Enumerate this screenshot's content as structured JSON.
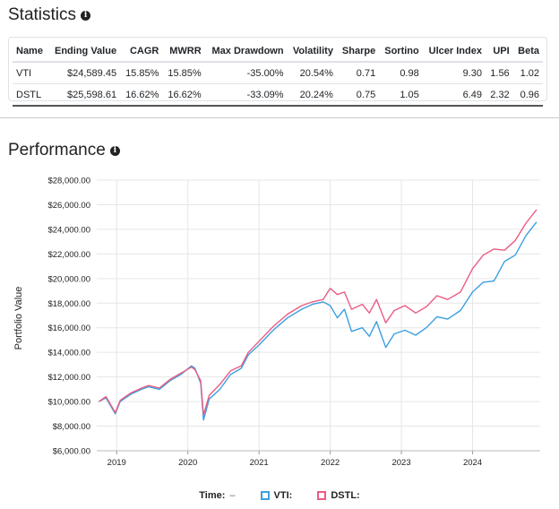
{
  "statistics": {
    "title": "Statistics",
    "columns": [
      "Name",
      "Ending Value",
      "CAGR",
      "MWRR",
      "Max Drawdown",
      "Volatility",
      "Sharpe",
      "Sortino",
      "Ulcer Index",
      "UPI",
      "Beta"
    ],
    "rows": [
      [
        "VTI",
        "$24,589.45",
        "15.85%",
        "15.85%",
        "-35.00%",
        "20.54%",
        "0.71",
        "0.98",
        "9.30",
        "1.56",
        "1.02"
      ],
      [
        "DSTL",
        "$25,598.61",
        "16.62%",
        "16.62%",
        "-33.09%",
        "20.24%",
        "0.75",
        "1.05",
        "6.49",
        "2.32",
        "0.96"
      ]
    ]
  },
  "performance": {
    "title": "Performance"
  },
  "colors": {
    "vti": "#3b9fe0",
    "dstl": "#ea5c82",
    "grid": "#e6e6e6"
  },
  "chart_data": {
    "type": "line",
    "title": "Performance",
    "xlabel": "",
    "ylabel": "Portfolio Value",
    "xlim": [
      2018.72,
      2024.95
    ],
    "ylim": [
      6000,
      28000
    ],
    "y_ticks": [
      6000,
      8000,
      10000,
      12000,
      14000,
      16000,
      18000,
      20000,
      22000,
      24000,
      26000,
      28000
    ],
    "y_tick_labels": [
      "$6,000.00",
      "$8,000.00",
      "$10,000.00",
      "$12,000.00",
      "$14,000.00",
      "$16,000.00",
      "$18,000.00",
      "$20,000.00",
      "$22,000.00",
      "$24,000.00",
      "$26,000.00",
      "$28,000.00"
    ],
    "x_ticks": [
      2019,
      2020,
      2021,
      2022,
      2023,
      2024
    ],
    "x_tick_labels": [
      "2019",
      "2020",
      "2021",
      "2022",
      "2023",
      "2024"
    ],
    "grid": true,
    "legend_position": "bottom-center",
    "legend": {
      "time_label": "Time:",
      "time_value": "–"
    },
    "series": [
      {
        "name": "VTI",
        "label": "VTI:",
        "x": [
          2018.75,
          2018.85,
          2018.98,
          2019.05,
          2019.2,
          2019.35,
          2019.45,
          2019.6,
          2019.75,
          2019.9,
          2020.05,
          2020.1,
          2020.18,
          2020.22,
          2020.3,
          2020.45,
          2020.6,
          2020.75,
          2020.85,
          2021.0,
          2021.2,
          2021.4,
          2021.6,
          2021.75,
          2021.9,
          2022.0,
          2022.1,
          2022.2,
          2022.3,
          2022.45,
          2022.55,
          2022.65,
          2022.78,
          2022.9,
          2023.05,
          2023.2,
          2023.35,
          2023.5,
          2023.65,
          2023.83,
          2024.0,
          2024.15,
          2024.3,
          2024.45,
          2024.6,
          2024.75,
          2024.9
        ],
        "y": [
          10000,
          10300,
          9000,
          10000,
          10600,
          11000,
          11200,
          11000,
          11700,
          12200,
          12900,
          12700,
          11500,
          8500,
          10200,
          11000,
          12200,
          12700,
          13800,
          14600,
          15800,
          16800,
          17500,
          17900,
          18100,
          17800,
          16800,
          17500,
          15700,
          16000,
          15300,
          16500,
          14400,
          15500,
          15800,
          15400,
          16000,
          16900,
          16700,
          17400,
          18900,
          19700,
          19800,
          21400,
          21900,
          23500,
          24600
        ]
      },
      {
        "name": "DSTL",
        "label": "DSTL:",
        "x": [
          2018.75,
          2018.85,
          2018.98,
          2019.05,
          2019.2,
          2019.35,
          2019.45,
          2019.6,
          2019.75,
          2019.9,
          2020.05,
          2020.1,
          2020.18,
          2020.22,
          2020.3,
          2020.45,
          2020.6,
          2020.75,
          2020.85,
          2021.0,
          2021.2,
          2021.4,
          2021.6,
          2021.75,
          2021.9,
          2022.0,
          2022.1,
          2022.2,
          2022.3,
          2022.45,
          2022.55,
          2022.65,
          2022.78,
          2022.9,
          2023.05,
          2023.2,
          2023.35,
          2023.5,
          2023.65,
          2023.83,
          2024.0,
          2024.15,
          2024.3,
          2024.45,
          2024.6,
          2024.75,
          2024.9
        ],
        "y": [
          10000,
          10400,
          9100,
          10100,
          10700,
          11100,
          11300,
          11100,
          11800,
          12300,
          12800,
          12600,
          11700,
          8900,
          10500,
          11400,
          12500,
          12900,
          14000,
          14900,
          16100,
          17100,
          17800,
          18100,
          18300,
          19200,
          18700,
          18900,
          17500,
          17900,
          17200,
          18300,
          16400,
          17400,
          17800,
          17200,
          17700,
          18600,
          18300,
          18900,
          20800,
          21900,
          22400,
          22300,
          23100,
          24500,
          25600
        ]
      }
    ]
  }
}
